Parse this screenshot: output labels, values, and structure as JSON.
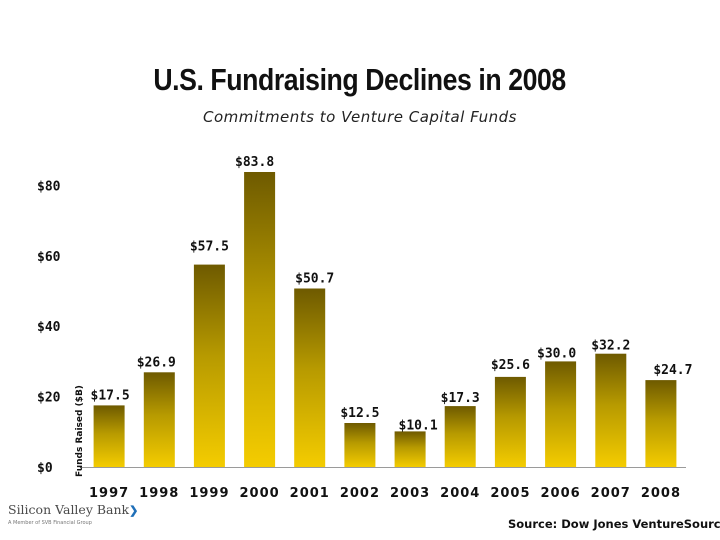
{
  "title": "U.S. Fundraising Declines in 2008",
  "subtitle": "Commitments to Venture Capital Funds",
  "source": "Source: Dow Jones VentureSource",
  "logo": {
    "name": "Silicon Valley Bank",
    "tagline": "A Member of SVB Financial Group"
  },
  "colors": {
    "bar_top": "#6e5a00",
    "bar_mid": "#b79a00",
    "bar_bottom": "#f4cc00",
    "axis": "#9a9a9a",
    "logo_accent": "#1f6fb8"
  },
  "chart_data": {
    "type": "bar",
    "title": "U.S. Fundraising Declines in 2008",
    "subtitle": "Commitments to Venture Capital Funds",
    "ylabel": "Funds Raised ($B)",
    "xlabel": "",
    "ylim": [
      0,
      90
    ],
    "yticks": [
      0,
      20,
      40,
      60,
      80
    ],
    "ytick_labels": [
      "$0",
      "$20",
      "$40",
      "$60",
      "$80"
    ],
    "categories": [
      "1997",
      "1998",
      "1999",
      "2000",
      "2001",
      "2002",
      "2003",
      "2004",
      "2005",
      "2006",
      "2007",
      "2008"
    ],
    "values": [
      17.5,
      26.9,
      57.5,
      83.8,
      50.7,
      12.5,
      10.1,
      17.3,
      25.6,
      30.0,
      32.2,
      24.7
    ],
    "value_labels": [
      "$17.5",
      "$26.9",
      "$57.5",
      "$83.8",
      "$50.7",
      "$12.5",
      "$10.1",
      "$17.3",
      "$25.6",
      "$30.0",
      "$32.2",
      "$24.7"
    ],
    "grid": false
  }
}
